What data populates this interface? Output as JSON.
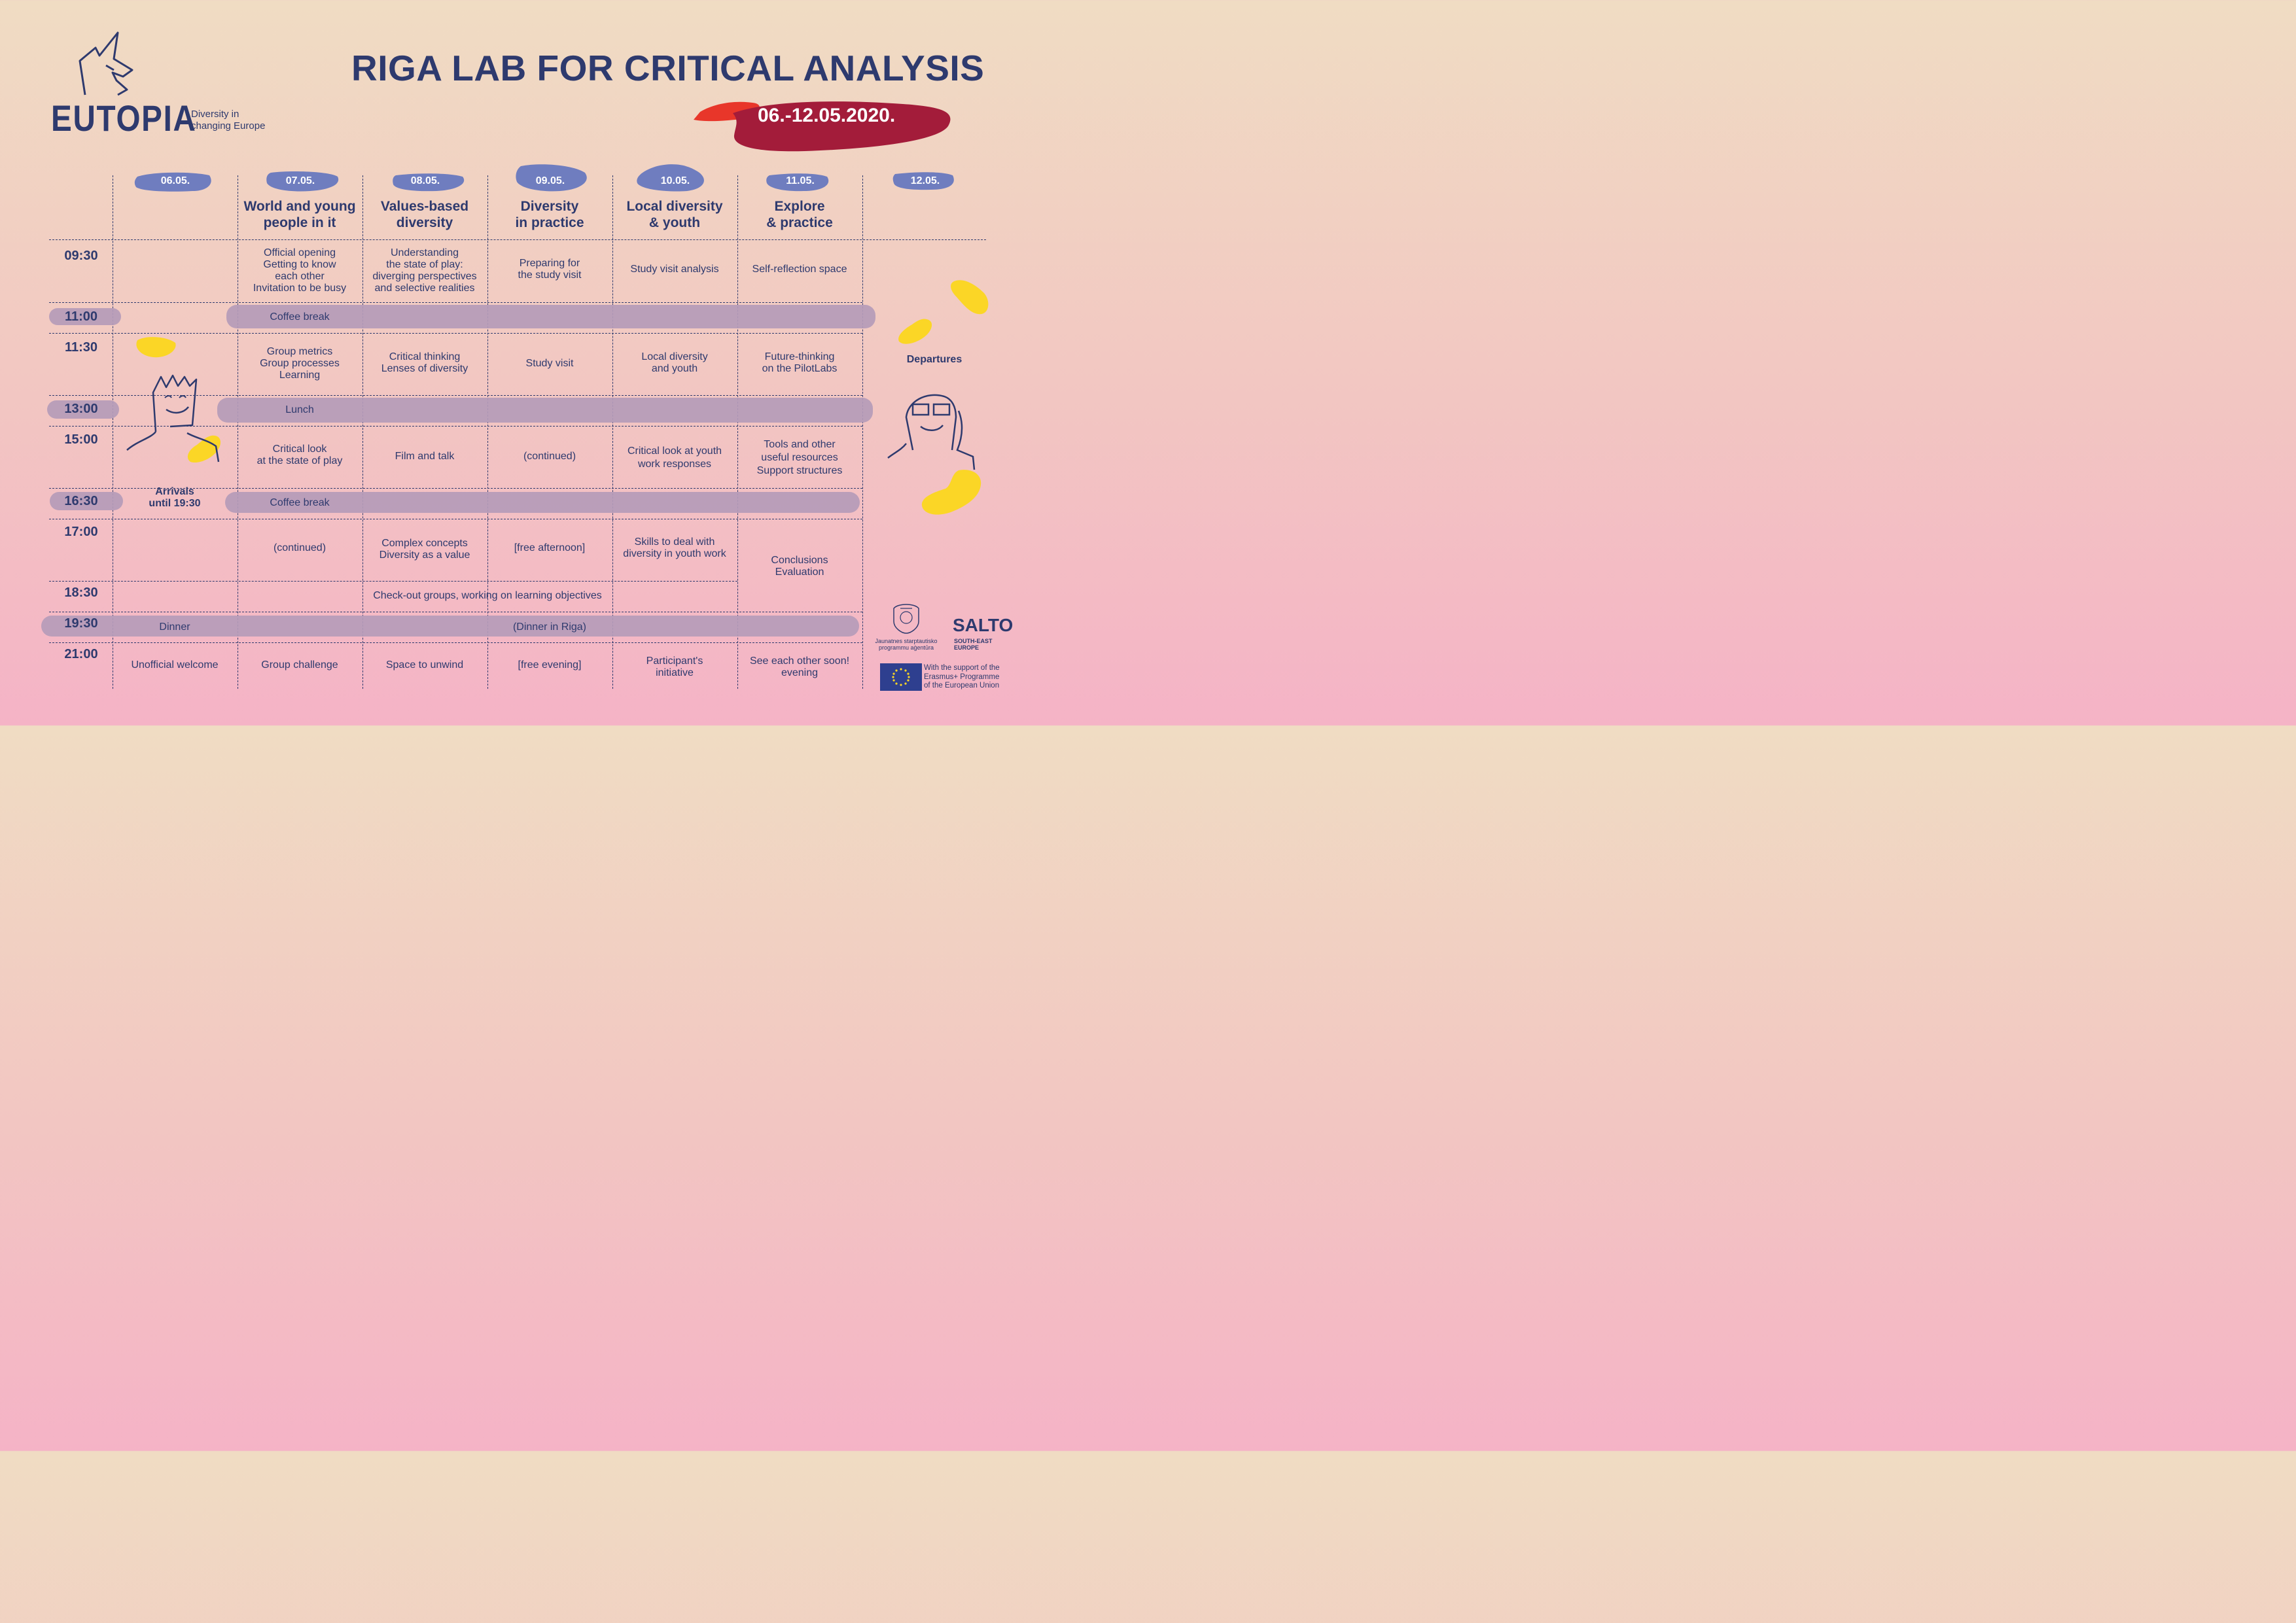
{
  "header": {
    "logo": "EUTOPIA",
    "tagline_line1": "Diversity in",
    "tagline_line2": "changing Europe",
    "title": "RIGA LAB FOR CRITICAL ANALYSIS",
    "dates": "06.-12.05.2020."
  },
  "days": [
    {
      "date": "06.05.",
      "theme_line1": "",
      "theme_line2": ""
    },
    {
      "date": "07.05.",
      "theme_line1": "World and young",
      "theme_line2": "people in it"
    },
    {
      "date": "08.05.",
      "theme_line1": "Values-based",
      "theme_line2": "diversity"
    },
    {
      "date": "09.05.",
      "theme_line1": "Diversity",
      "theme_line2": "in practice"
    },
    {
      "date": "10.05.",
      "theme_line1": "Local diversity",
      "theme_line2": "& youth"
    },
    {
      "date": "11.05.",
      "theme_line1": "Explore",
      "theme_line2": "& practice"
    },
    {
      "date": "12.05.",
      "theme_line1": "",
      "theme_line2": ""
    }
  ],
  "times": [
    "09:30",
    "11:00",
    "11:30",
    "13:00",
    "15:00",
    "16:30",
    "17:00",
    "18:30",
    "19:30",
    "21:00"
  ],
  "cells": {
    "s0930": [
      "Official opening\nGetting to know\neach other\nInvitation to be busy",
      "Understanding\nthe state of play:\ndiverging perspectives\nand selective realities",
      "Preparing for\nthe study visit",
      "Study visit analysis",
      "Self-reflection space"
    ],
    "coffee1": "Coffee break",
    "s1130": [
      "Group metrics\nGroup processes\nLearning",
      "Critical thinking\nLenses of diversity",
      "Study visit",
      "Local diversity\nand youth",
      "Future-thinking\non the PilotLabs"
    ],
    "lunch": "Lunch",
    "s1500": [
      "Critical look\nat the state of play",
      "Film and talk",
      "(continued)",
      "Critical look at youth\nwork responses",
      "Tools and other\nuseful resources\nSupport structures"
    ],
    "coffee2": "Coffee break",
    "s1700": [
      "(continued)",
      "Complex concepts\nDiversity as a value",
      "[free afternoon]",
      "Skills to deal with\ndiversity in youth work"
    ],
    "conclusions": "Conclusions\nEvaluation",
    "checkout": "Check-out groups, working on learning objectives",
    "dinner": "Dinner",
    "dinner_riga": "(Dinner in Riga)",
    "s2100": [
      "Unofficial welcome",
      "Group challenge",
      "Space to unwind",
      "[free evening]",
      "Participant's\ninitiative",
      "See each other soon!\nevening"
    ],
    "arrivals": "Arrivals\nuntil 19:30",
    "departures": "Departures"
  },
  "footer": {
    "agency_line1": "Jaunatnes starptautisko",
    "agency_line2": "programmu aģentūra",
    "salto": "SALTO",
    "salto_sub1": "SOUTH-EAST",
    "salto_sub2": "EUROPE",
    "eu_line1": "With the support of the",
    "eu_line2": "Erasmus+ Programme",
    "eu_line3": "of the European Union"
  },
  "colors": {
    "navy": "#2e3a6e",
    "blue_pill": "#6f7dbf",
    "lilac": "#b59bb8",
    "red": "#e8362a",
    "maroon": "#a31c3a",
    "yellow": "#fbd626"
  }
}
